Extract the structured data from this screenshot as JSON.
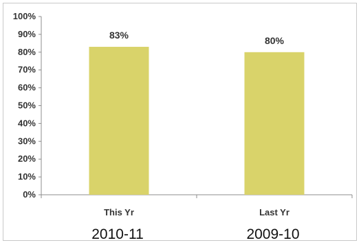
{
  "chart_data": {
    "type": "bar",
    "categories": [
      "This Yr",
      "Last Yr"
    ],
    "values": [
      83,
      80
    ],
    "data_labels": [
      "83%",
      "80%"
    ],
    "sublabels": [
      "2010-11",
      "2009-10"
    ],
    "ylim": [
      0,
      100
    ],
    "yticks": [
      "0%",
      "10%",
      "20%",
      "30%",
      "40%",
      "50%",
      "60%",
      "70%",
      "80%",
      "90%",
      "100%"
    ],
    "grid": false,
    "legend": "none",
    "bar_color": "#d9d36a"
  }
}
